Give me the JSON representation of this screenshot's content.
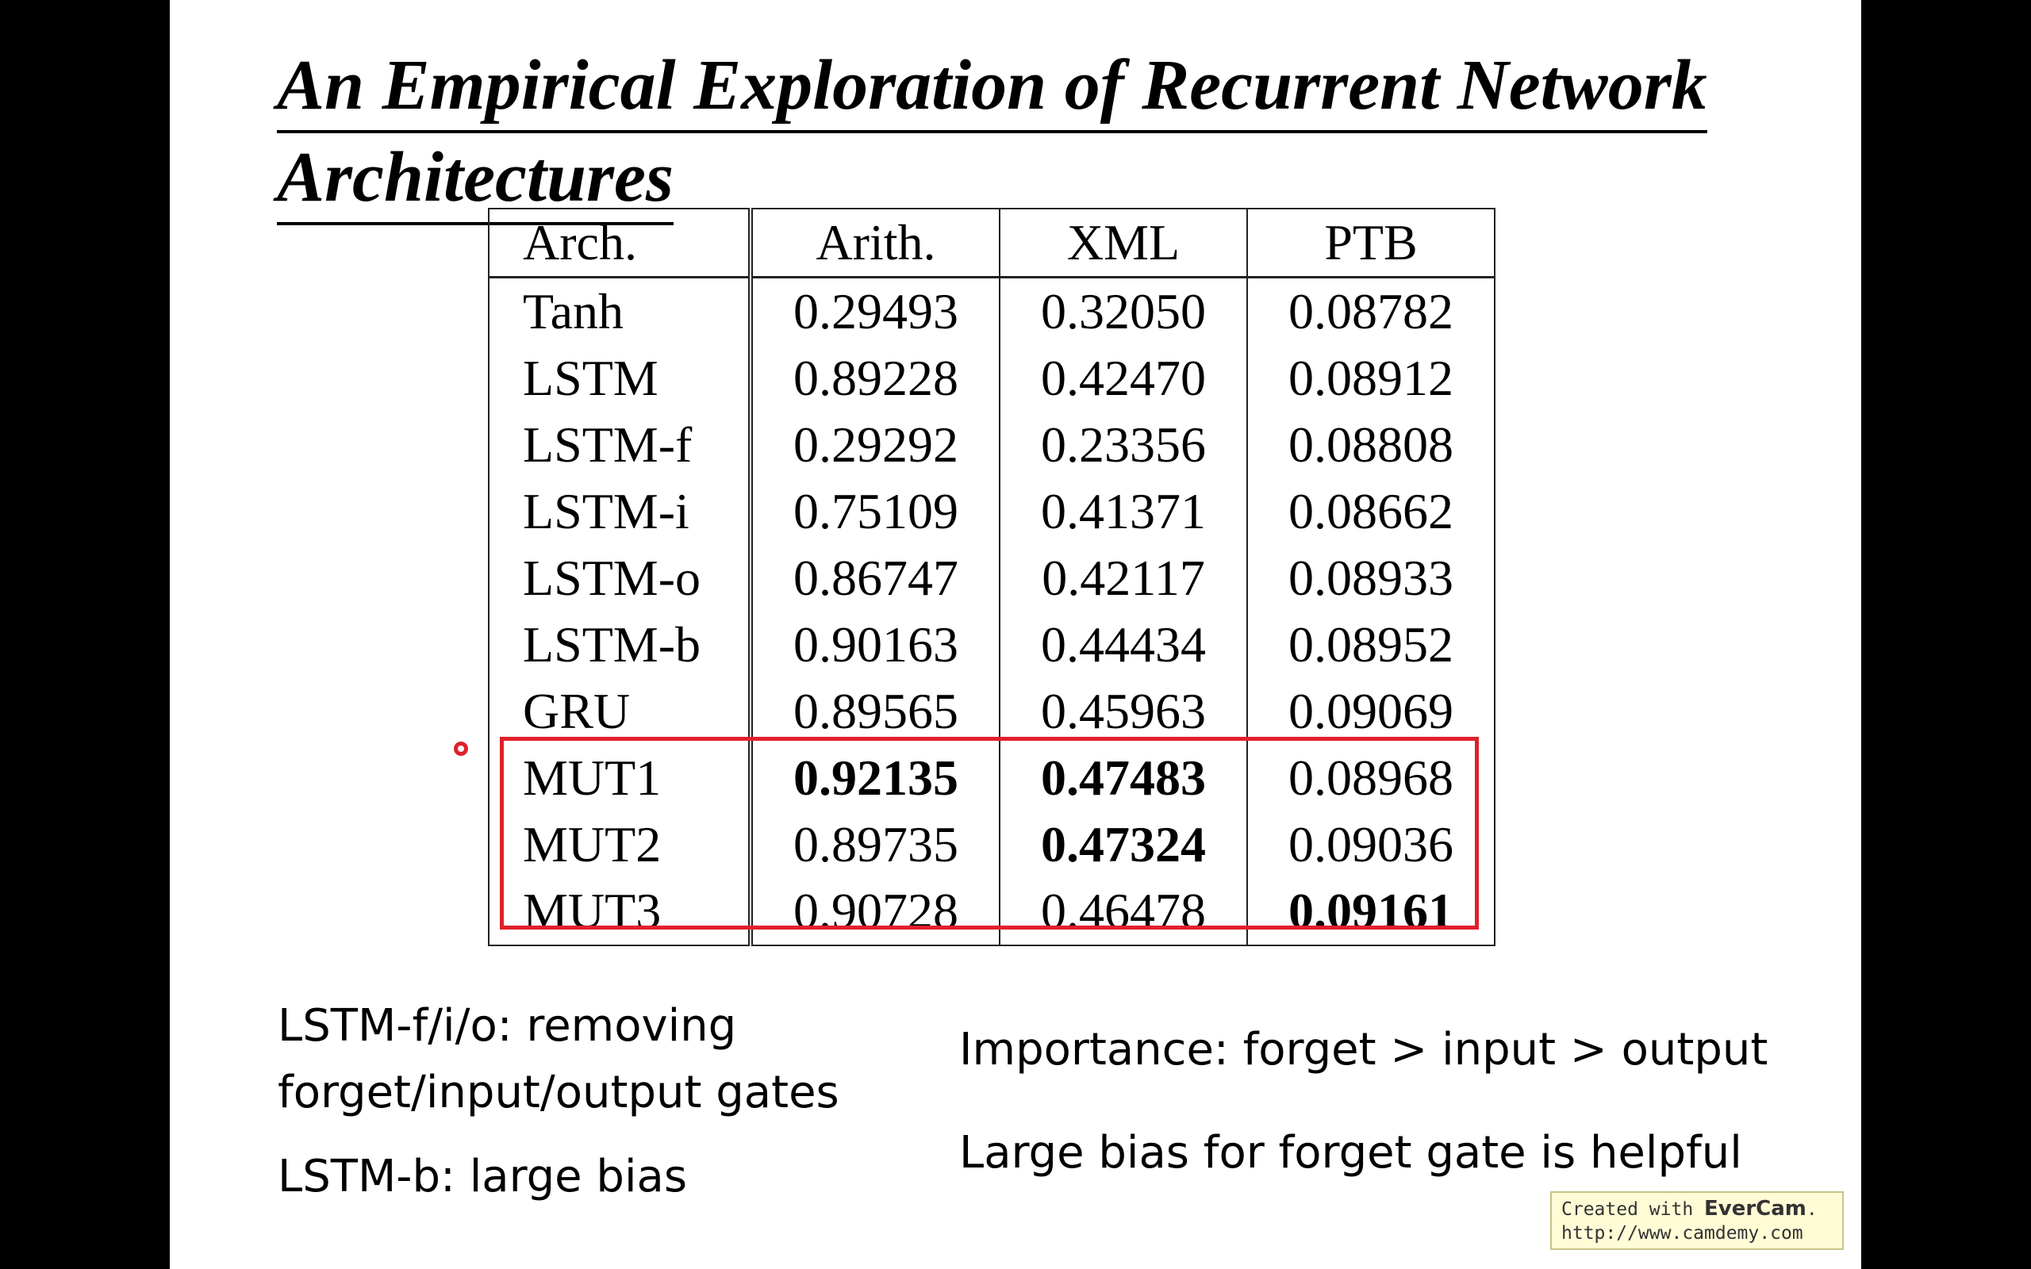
{
  "slide": {
    "title_line1": "An Empirical Exploration of Recurrent Network",
    "title_line2": "Architectures"
  },
  "table": {
    "headers": [
      "Arch.",
      "Arith.",
      "XML",
      "PTB"
    ],
    "rows": [
      {
        "arch": "Tanh",
        "arith": "0.29493",
        "xml": "0.32050",
        "ptb": "0.08782",
        "bold": []
      },
      {
        "arch": "LSTM",
        "arith": "0.89228",
        "xml": "0.42470",
        "ptb": "0.08912",
        "bold": []
      },
      {
        "arch": "LSTM-f",
        "arith": "0.29292",
        "xml": "0.23356",
        "ptb": "0.08808",
        "bold": []
      },
      {
        "arch": "LSTM-i",
        "arith": "0.75109",
        "xml": "0.41371",
        "ptb": "0.08662",
        "bold": []
      },
      {
        "arch": "LSTM-o",
        "arith": "0.86747",
        "xml": "0.42117",
        "ptb": "0.08933",
        "bold": []
      },
      {
        "arch": "LSTM-b",
        "arith": "0.90163",
        "xml": "0.44434",
        "ptb": "0.08952",
        "bold": []
      },
      {
        "arch": "GRU",
        "arith": "0.89565",
        "xml": "0.45963",
        "ptb": "0.09069",
        "bold": []
      },
      {
        "arch": "MUT1",
        "arith": "0.92135",
        "xml": "0.47483",
        "ptb": "0.08968",
        "bold": [
          "arith",
          "xml"
        ]
      },
      {
        "arch": "MUT2",
        "arith": "0.89735",
        "xml": "0.47324",
        "ptb": "0.09036",
        "bold": [
          "xml"
        ]
      },
      {
        "arch": "MUT3",
        "arith": "0.90728",
        "xml": "0.46478",
        "ptb": "0.09161",
        "bold": [
          "ptb"
        ]
      }
    ]
  },
  "notes": {
    "left_1_line1": "LSTM-f/i/o: removing",
    "left_1_line2": "forget/input/output gates",
    "left_2": "LSTM-b: large bias",
    "right_1": "Importance: forget > input > output",
    "right_2": "Large bias for forget gate is helpful"
  },
  "watermark": {
    "prefix": "Created with ",
    "brand": "EverCam",
    "suffix": ".",
    "url": "http://www.camdemy.com"
  },
  "colors": {
    "highlight": "#e0202a",
    "watermark_bg": "#fffcd6"
  }
}
